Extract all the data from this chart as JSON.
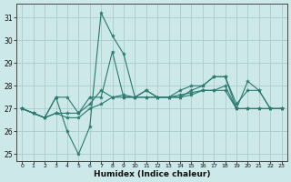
{
  "xlabel": "Humidex (Indice chaleur)",
  "xlim": [
    -0.5,
    23.5
  ],
  "ylim": [
    24.7,
    31.6
  ],
  "yticks": [
    25,
    26,
    27,
    28,
    29,
    30,
    31
  ],
  "xticks": [
    0,
    1,
    2,
    3,
    4,
    5,
    6,
    7,
    8,
    9,
    10,
    11,
    12,
    13,
    14,
    15,
    16,
    17,
    18,
    19,
    20,
    21,
    22,
    23
  ],
  "background_color": "#cce8e8",
  "grid_color": "#aacccc",
  "line_color": "#2a7a6f",
  "lines": [
    [
      27.0,
      26.8,
      26.6,
      27.5,
      26.0,
      25.0,
      26.2,
      31.2,
      30.2,
      29.4,
      27.5,
      27.8,
      27.5,
      27.5,
      27.5,
      27.8,
      28.0,
      28.4,
      28.4,
      27.0,
      28.2,
      27.8,
      27.0,
      27.0
    ],
    [
      27.0,
      26.8,
      26.6,
      27.5,
      27.5,
      26.8,
      27.5,
      27.5,
      29.5,
      27.5,
      27.5,
      27.8,
      27.5,
      27.5,
      27.8,
      28.0,
      28.0,
      28.4,
      28.4,
      27.2,
      27.8,
      27.8,
      27.0,
      27.0
    ],
    [
      27.0,
      26.8,
      26.6,
      26.8,
      26.6,
      26.6,
      27.0,
      27.2,
      27.5,
      27.6,
      27.5,
      27.5,
      27.5,
      27.5,
      27.5,
      27.6,
      27.8,
      27.8,
      28.0,
      27.0,
      27.0,
      27.0,
      27.0,
      27.0
    ],
    [
      27.0,
      26.8,
      26.6,
      26.8,
      26.8,
      26.8,
      27.2,
      27.8,
      27.5,
      27.5,
      27.5,
      27.5,
      27.5,
      27.5,
      27.6,
      27.7,
      27.8,
      27.8,
      27.8,
      27.0,
      27.0,
      27.0,
      27.0,
      27.0
    ]
  ]
}
